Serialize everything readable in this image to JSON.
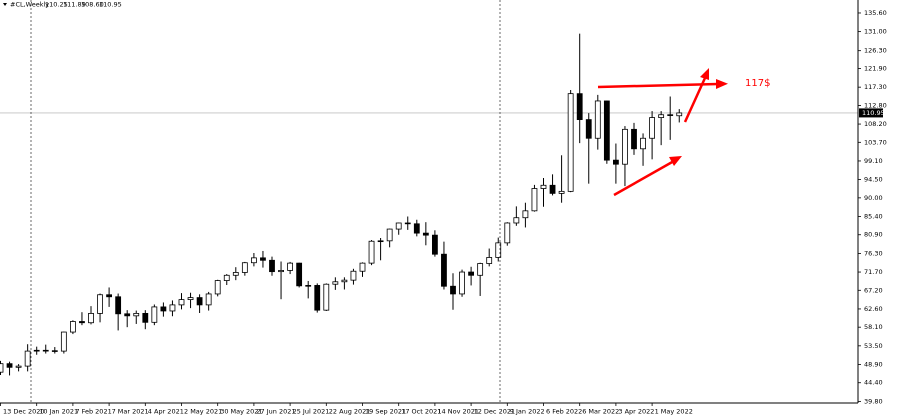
{
  "chart_data": {
    "type": "candlestick",
    "title": "#CL,Weekly",
    "ohlc_labels": [
      "110.25",
      "111.89",
      "108.60",
      "110.95"
    ],
    "categories": [
      "13 Dec 2020",
      null,
      null,
      null,
      "10 Jan 2021",
      null,
      null,
      null,
      "7 Feb 2021",
      null,
      null,
      null,
      "7 Mar 2021",
      null,
      null,
      null,
      "4 Apr 2021",
      null,
      null,
      null,
      "2 May 2021",
      null,
      null,
      null,
      "30 May 2021",
      null,
      null,
      null,
      "27 Jun 2021",
      null,
      null,
      null,
      "25 Jul 2021",
      null,
      null,
      null,
      "22 Aug 2021",
      null,
      null,
      null,
      "19 Sep 2021",
      null,
      null,
      null,
      "17 Oct 2021",
      null,
      null,
      null,
      "14 Nov 2021",
      null,
      null,
      null,
      "12 Dec 2021",
      null,
      null,
      null,
      "9 Jan 2022",
      null,
      null,
      null,
      "6 Feb 2022",
      null,
      null,
      null,
      "6 Mar 2022",
      null,
      null,
      null,
      "3 Apr 2022",
      null,
      null,
      null,
      "1 May 2022",
      null,
      null,
      null
    ],
    "open": [
      47.0,
      49.1,
      48.2,
      48.5,
      52.2,
      52.4,
      52.3,
      52.2,
      56.9,
      59.5,
      59.2,
      61.5,
      66.1,
      65.6,
      61.4,
      60.9,
      61.5,
      59.3,
      63.1,
      62.1,
      63.6,
      64.9,
      65.4,
      63.6,
      66.3,
      69.6,
      70.9,
      71.6,
      74.0,
      75.2,
      74.6,
      71.8,
      72.1,
      73.9,
      68.3,
      68.4,
      62.3,
      68.7,
      69.3,
      69.7,
      71.9,
      73.9,
      79.3,
      79.4,
      82.3,
      83.8,
      83.6,
      81.3,
      80.8,
      76.1,
      68.2,
      66.3,
      71.7,
      70.9,
      73.8,
      75.3,
      78.9,
      83.8,
      85.1,
      86.8,
      92.3,
      93.1,
      91.1,
      91.6,
      115.7,
      109.3,
      104.7,
      113.9,
      99.3,
      98.3,
      106.9,
      102.1,
      104.7,
      109.8,
      110.5,
      110.25
    ],
    "high": [
      49.8,
      49.6,
      49.0,
      53.9,
      53.3,
      53.8,
      53.2,
      57.0,
      59.8,
      61.8,
      63.3,
      66.4,
      67.9,
      66.4,
      62.3,
      62.2,
      62.3,
      63.7,
      64.2,
      64.7,
      66.5,
      66.6,
      66.2,
      66.8,
      69.8,
      71.2,
      72.9,
      74.2,
      76.4,
      76.9,
      75.5,
      74.3,
      74.2,
      74.0,
      69.5,
      68.9,
      68.9,
      70.4,
      70.4,
      72.5,
      74.1,
      79.6,
      80.1,
      82.4,
      83.9,
      85.4,
      84.6,
      84.0,
      82.0,
      79.2,
      71.4,
      72.3,
      73.0,
      74.0,
      77.5,
      80.2,
      84.0,
      87.9,
      88.8,
      93.2,
      94.9,
      95.8,
      100.5,
      116.6,
      130.5,
      110.9,
      115.4,
      114.0,
      103.4,
      107.7,
      108.5,
      105.9,
      111.4,
      111.4,
      115.0,
      111.89
    ],
    "low": [
      46.3,
      46.2,
      47.2,
      47.2,
      51.3,
      51.6,
      51.6,
      51.6,
      56.4,
      58.6,
      58.8,
      59.3,
      63.1,
      57.3,
      58.1,
      58.9,
      57.6,
      58.6,
      60.7,
      60.8,
      62.5,
      62.8,
      61.6,
      62.2,
      65.7,
      68.5,
      69.7,
      70.8,
      73.1,
      72.8,
      70.8,
      65.0,
      71.2,
      67.9,
      65.2,
      61.7,
      62.1,
      67.3,
      67.4,
      68.6,
      70.5,
      73.4,
      74.6,
      77.8,
      80.9,
      82.1,
      80.5,
      78.3,
      75.5,
      67.4,
      62.4,
      65.6,
      68.4,
      65.8,
      73.1,
      74.3,
      78.2,
      83.1,
      82.7,
      86.6,
      87.8,
      90.6,
      88.8,
      91.4,
      103.5,
      93.5,
      101.9,
      98.4,
      93.5,
      92.9,
      100.6,
      97.9,
      99.5,
      103.0,
      104.3,
      108.6
    ],
    "close": [
      49.1,
      48.2,
      48.5,
      52.2,
      52.4,
      52.3,
      52.2,
      56.9,
      59.5,
      59.2,
      61.5,
      66.1,
      65.6,
      61.4,
      60.9,
      61.5,
      59.3,
      63.1,
      62.1,
      63.6,
      64.9,
      65.4,
      63.6,
      66.3,
      69.6,
      70.9,
      71.6,
      74.0,
      75.2,
      74.6,
      71.8,
      72.1,
      73.9,
      68.3,
      68.4,
      62.3,
      68.7,
      69.3,
      69.7,
      71.9,
      73.9,
      79.3,
      79.4,
      82.3,
      83.8,
      83.6,
      81.3,
      80.8,
      76.1,
      68.2,
      66.3,
      71.7,
      70.9,
      73.8,
      75.3,
      78.9,
      83.8,
      85.1,
      86.8,
      92.3,
      93.1,
      91.1,
      91.6,
      115.7,
      109.3,
      104.7,
      113.9,
      99.3,
      98.3,
      106.9,
      102.1,
      104.7,
      109.8,
      110.5,
      110.3,
      110.95
    ],
    "up_color": "#ffffff",
    "down_color": "#000000",
    "wick_color": "#000000",
    "ylim": [
      39.4,
      138.8
    ],
    "yticks": [
      {
        "value": 135.6,
        "label": "135.60"
      },
      {
        "value": 131.0,
        "label": "131.00"
      },
      {
        "value": 126.3,
        "label": "126.30"
      },
      {
        "value": 121.9,
        "label": "121.90"
      },
      {
        "value": 117.3,
        "label": "117.30"
      },
      {
        "value": 112.8,
        "label": "112.80"
      },
      {
        "value": 108.2,
        "label": "108.20"
      },
      {
        "value": 103.7,
        "label": "103.70"
      },
      {
        "value": 99.1,
        "label": "99.10"
      },
      {
        "value": 94.5,
        "label": "94.50"
      },
      {
        "value": 90.0,
        "label": "90.00"
      },
      {
        "value": 85.4,
        "label": "85.40"
      },
      {
        "value": 80.9,
        "label": "80.90"
      },
      {
        "value": 76.3,
        "label": "76.30"
      },
      {
        "value": 71.7,
        "label": "71.70"
      },
      {
        "value": 67.2,
        "label": "67.20"
      },
      {
        "value": 62.6,
        "label": "62.60"
      },
      {
        "value": 58.1,
        "label": "58.10"
      },
      {
        "value": 53.5,
        "label": "53.50"
      },
      {
        "value": 48.9,
        "label": "48.90"
      },
      {
        "value": 44.4,
        "label": "44.40"
      },
      {
        "value": 39.8,
        "label": "39.80"
      }
    ],
    "current_price": {
      "value": 110.95,
      "label": "110.95"
    },
    "annotations": [
      "117$"
    ]
  }
}
